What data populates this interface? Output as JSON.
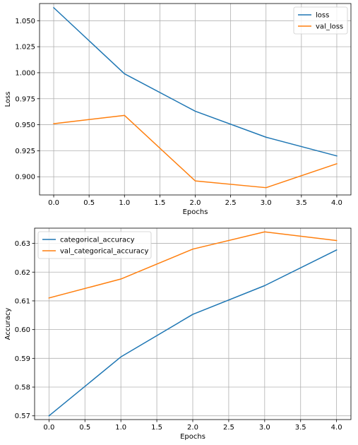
{
  "chart_data": [
    {
      "type": "line",
      "x": [
        0,
        1,
        2,
        3,
        4
      ],
      "xlabel": "Epochs",
      "ylabel": "Loss",
      "xlim": [
        -0.2,
        4.2
      ],
      "ylim": [
        0.8825,
        1.0665
      ],
      "xticks": [
        0.0,
        0.5,
        1.0,
        1.5,
        2.0,
        2.5,
        3.0,
        3.5,
        4.0
      ],
      "xtick_labels": [
        "0.0",
        "0.5",
        "1.0",
        "1.5",
        "2.0",
        "2.5",
        "3.0",
        "3.5",
        "4.0"
      ],
      "yticks": [
        0.9,
        0.925,
        0.95,
        0.975,
        1.0,
        1.025,
        1.05
      ],
      "ytick_labels": [
        "0.900",
        "0.925",
        "0.950",
        "0.975",
        "1.000",
        "1.025",
        "1.050"
      ],
      "grid": true,
      "legend": "top-right",
      "series": [
        {
          "name": "loss",
          "color": "#1f77b4",
          "values": [
            1.0625,
            0.999,
            0.963,
            0.938,
            0.92
          ]
        },
        {
          "name": "val_loss",
          "color": "#ff7f0e",
          "values": [
            0.951,
            0.959,
            0.896,
            0.8895,
            0.9125
          ]
        }
      ]
    },
    {
      "type": "line",
      "x": [
        0,
        1,
        2,
        3,
        4
      ],
      "xlabel": "Epochs",
      "ylabel": "Accuracy",
      "xlim": [
        -0.2,
        4.2
      ],
      "ylim": [
        0.5687,
        0.6353
      ],
      "xticks": [
        0.0,
        0.5,
        1.0,
        1.5,
        2.0,
        2.5,
        3.0,
        3.5,
        4.0
      ],
      "xtick_labels": [
        "0.0",
        "0.5",
        "1.0",
        "1.5",
        "2.0",
        "2.5",
        "3.0",
        "3.5",
        "4.0"
      ],
      "yticks": [
        0.57,
        0.58,
        0.59,
        0.6,
        0.61,
        0.62,
        0.63
      ],
      "ytick_labels": [
        "0.57",
        "0.58",
        "0.59",
        "0.60",
        "0.61",
        "0.62",
        "0.63"
      ],
      "grid": true,
      "legend": "top-left",
      "series": [
        {
          "name": "categorical_accuracy",
          "color": "#1f77b4",
          "values": [
            0.57,
            0.5905,
            0.6053,
            0.6153,
            0.6277
          ]
        },
        {
          "name": "val_categorical_accuracy",
          "color": "#ff7f0e",
          "values": [
            0.611,
            0.6176,
            0.628,
            0.634,
            0.631
          ]
        }
      ]
    }
  ]
}
